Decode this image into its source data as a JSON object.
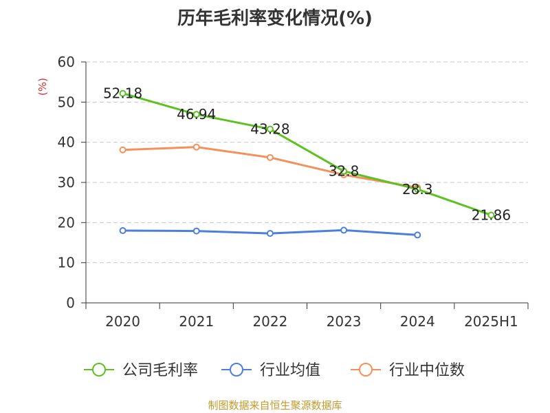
{
  "chart_data": {
    "type": "line",
    "title": "历年毛利率变化情况(%)",
    "ylabel": "(%)",
    "categories": [
      "2020",
      "2021",
      "2022",
      "2023",
      "2024",
      "2025H1"
    ],
    "ylim": [
      0,
      60
    ],
    "yticks": [
      0,
      10,
      20,
      30,
      40,
      50,
      60
    ],
    "grid": true,
    "legend_position": "bottom",
    "series": [
      {
        "name": "公司毛利率",
        "color": "#5cc121",
        "values": [
          52.18,
          46.94,
          43.28,
          32.8,
          28.3,
          21.86
        ],
        "labels": [
          "52.18",
          "46.94",
          "43.28",
          "32.8",
          "28.3",
          "21.86"
        ]
      },
      {
        "name": "行业均值",
        "color": "#4a7fdc",
        "values": [
          18.0,
          17.9,
          17.3,
          18.1,
          16.9,
          null
        ]
      },
      {
        "name": "行业中位数",
        "color": "#f5905a",
        "values": [
          38.1,
          38.8,
          36.2,
          31.9,
          28.7,
          null
        ]
      }
    ],
    "source": "制图数据来自恒生聚源数据库"
  }
}
